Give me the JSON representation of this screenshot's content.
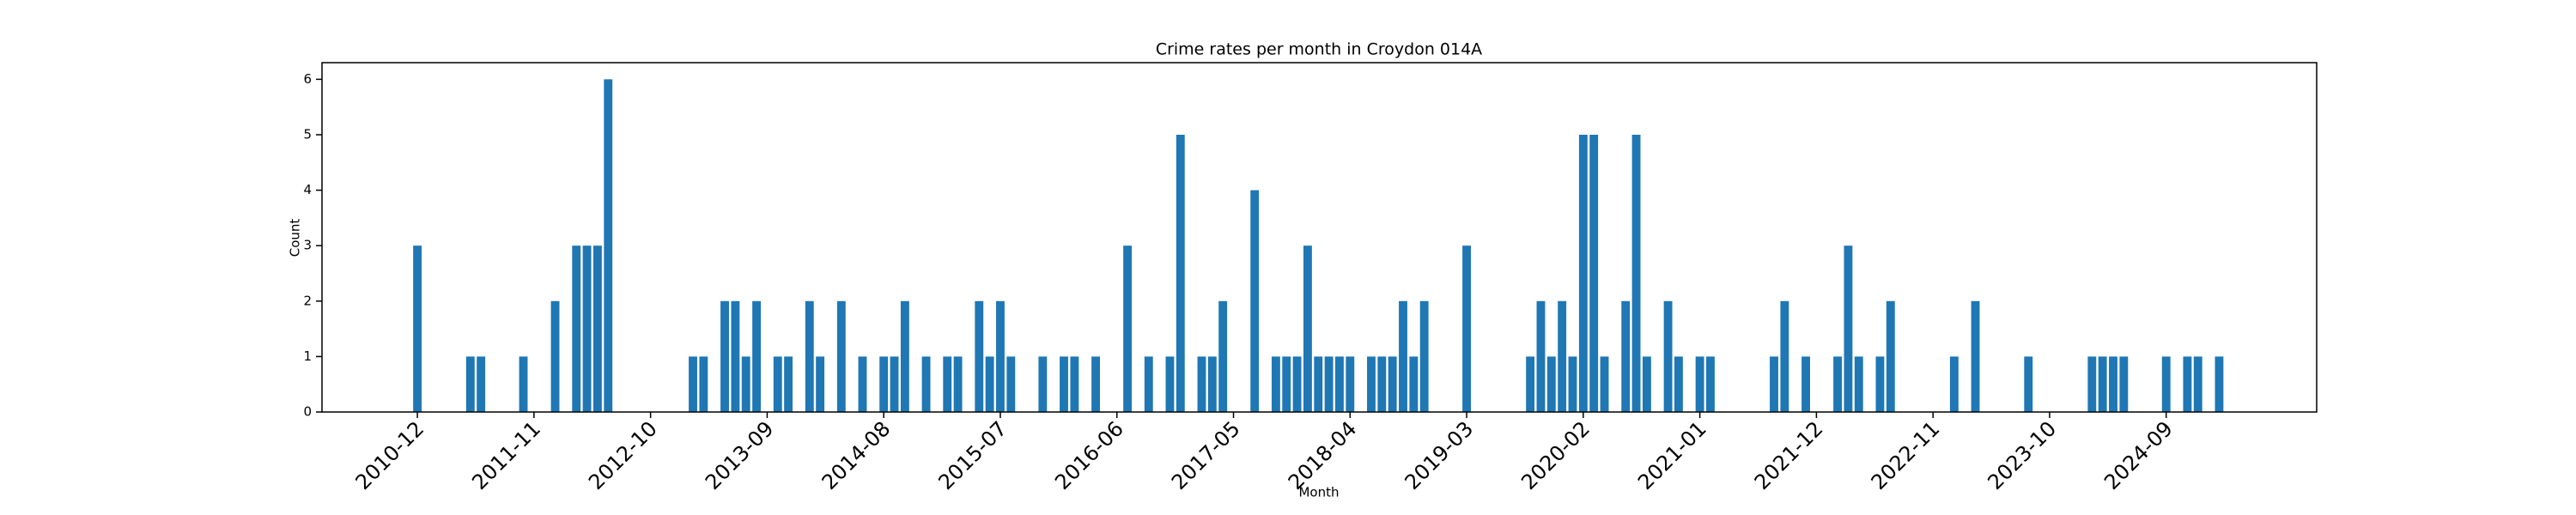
{
  "chart_data": {
    "type": "bar",
    "title": "Crime rates per month in Croydon 014A",
    "xlabel": "Month",
    "ylabel": "Count",
    "categories": [
      "2010-12",
      null,
      null,
      null,
      null,
      null,
      null,
      null,
      null,
      null,
      null,
      "2011-11",
      null,
      null,
      null,
      null,
      null,
      null,
      null,
      null,
      null,
      null,
      "2012-10",
      null,
      null,
      null,
      null,
      null,
      null,
      null,
      null,
      null,
      null,
      "2013-09",
      null,
      null,
      null,
      null,
      null,
      null,
      null,
      null,
      null,
      null,
      "2014-08",
      null,
      null,
      null,
      null,
      null,
      null,
      null,
      null,
      null,
      null,
      "2015-07",
      null,
      null,
      null,
      null,
      null,
      null,
      null,
      null,
      null,
      null,
      "2016-06",
      null,
      null,
      null,
      null,
      null,
      null,
      null,
      null,
      null,
      null,
      "2017-05",
      null,
      null,
      null,
      null,
      null,
      null,
      null,
      null,
      null,
      null,
      "2018-04",
      null,
      null,
      null,
      null,
      null,
      null,
      null,
      null,
      null,
      null,
      "2019-03",
      null,
      null,
      null,
      null,
      null,
      null,
      null,
      null,
      null,
      null,
      "2020-02",
      null,
      null,
      null,
      null,
      null,
      null,
      null,
      null,
      null,
      null,
      "2021-01",
      null,
      null,
      null,
      null,
      null,
      null,
      null,
      null,
      null,
      null,
      "2021-12",
      null,
      null,
      null,
      null,
      null,
      null,
      null,
      null,
      null,
      null,
      "2022-11",
      null,
      null,
      null,
      null,
      null,
      null,
      null,
      null,
      null,
      null,
      "2023-10",
      null,
      null,
      null,
      null,
      null,
      null,
      null,
      null,
      null,
      null,
      "2024-09",
      null,
      null,
      null,
      null,
      null
    ],
    "values": [
      3,
      0,
      0,
      0,
      0,
      1,
      1,
      0,
      0,
      0,
      1,
      0,
      0,
      2,
      0,
      3,
      3,
      3,
      6,
      0,
      0,
      0,
      0,
      0,
      0,
      0,
      1,
      1,
      0,
      2,
      2,
      1,
      2,
      0,
      1,
      1,
      0,
      2,
      1,
      0,
      2,
      0,
      1,
      0,
      1,
      1,
      2,
      0,
      1,
      0,
      1,
      1,
      0,
      2,
      1,
      2,
      1,
      0,
      0,
      1,
      0,
      1,
      1,
      0,
      1,
      0,
      0,
      3,
      0,
      1,
      0,
      1,
      5,
      0,
      1,
      1,
      2,
      0,
      0,
      4,
      0,
      1,
      1,
      1,
      3,
      1,
      1,
      1,
      1,
      0,
      1,
      1,
      1,
      2,
      1,
      2,
      0,
      0,
      0,
      3,
      0,
      0,
      0,
      0,
      0,
      1,
      2,
      1,
      2,
      1,
      5,
      5,
      1,
      0,
      2,
      5,
      1,
      0,
      2,
      1,
      0,
      1,
      1,
      0,
      0,
      0,
      0,
      0,
      1,
      2,
      0,
      1,
      0,
      0,
      1,
      3,
      1,
      0,
      1,
      2,
      0,
      0,
      0,
      0,
      0,
      1,
      0,
      2,
      0,
      0,
      0,
      0,
      1,
      0,
      0,
      0,
      0,
      0,
      1,
      1,
      1,
      1,
      0,
      0,
      0,
      1,
      0,
      1,
      1,
      0,
      1
    ],
    "color": "#1f77b4",
    "ylim": [
      0,
      6.3
    ],
    "yticks": [
      0,
      1,
      2,
      3,
      4,
      5,
      6
    ]
  }
}
